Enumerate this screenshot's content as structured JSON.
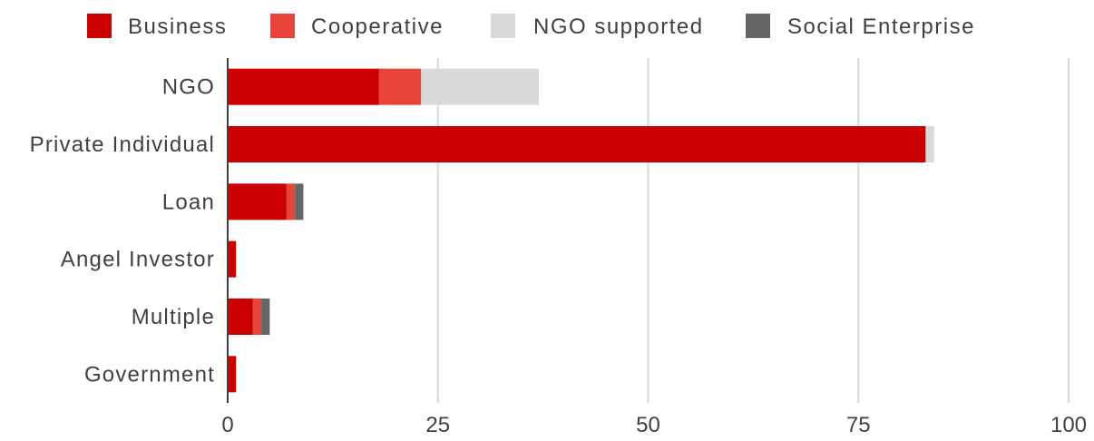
{
  "chart_data": {
    "type": "bar",
    "orientation": "horizontal",
    "stacked": true,
    "title": "",
    "xlabel": "",
    "ylabel": "",
    "categories": [
      "NGO",
      "Private Individual",
      "Loan",
      "Angel Investor",
      "Multiple",
      "Government"
    ],
    "series": [
      {
        "name": "Business",
        "color": "#cc0000",
        "values": [
          18,
          83,
          7,
          1,
          3,
          1
        ]
      },
      {
        "name": "Cooperative",
        "color": "#e8433a",
        "values": [
          5,
          0,
          1,
          0,
          1,
          0
        ]
      },
      {
        "name": "NGO supported",
        "color": "#d9d9d9",
        "values": [
          14,
          1,
          0,
          0,
          0,
          0
        ]
      },
      {
        "name": "Social Enterprise",
        "color": "#666666",
        "values": [
          0,
          0,
          1,
          0,
          1,
          0
        ]
      }
    ],
    "xlim": [
      0,
      100
    ],
    "xticks": [
      0,
      25,
      50,
      75,
      100
    ],
    "grid": "vertical",
    "legend_position": "top"
  }
}
